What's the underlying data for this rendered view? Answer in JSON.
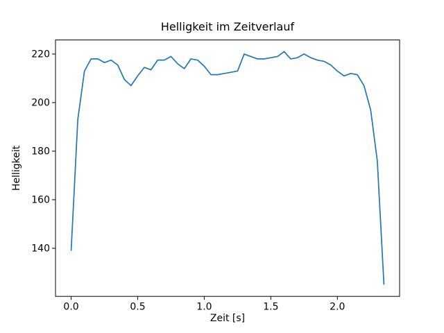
{
  "figure": {
    "background_color": "#ffffff",
    "frame_color": "#000000",
    "text_color": "#000000"
  },
  "chart_data": {
    "type": "line",
    "title": "Helligkeit im Zeitverlauf",
    "xlabel": "Zeit [s]",
    "ylabel": "Helligkeit",
    "line_color": "#1f77b4",
    "grid": false,
    "legend": null,
    "xlim": [
      -0.1175,
      2.4675
    ],
    "ylim": [
      120.2,
      225.8
    ],
    "xticks": {
      "values": [
        0.0,
        0.5,
        1.0,
        1.5,
        2.0
      ],
      "labels": [
        "0.0",
        "0.5",
        "1.0",
        "1.5",
        "2.0"
      ]
    },
    "yticks": {
      "values": [
        140,
        160,
        180,
        200,
        220
      ],
      "labels": [
        "140",
        "160",
        "180",
        "200",
        "220"
      ]
    },
    "x": [
      0.0,
      0.05,
      0.1,
      0.15,
      0.2,
      0.25,
      0.3,
      0.35,
      0.4,
      0.45,
      0.5,
      0.55,
      0.6,
      0.65,
      0.7,
      0.75,
      0.8,
      0.85,
      0.9,
      0.95,
      1.0,
      1.05,
      1.1,
      1.15,
      1.2,
      1.25,
      1.3,
      1.35,
      1.4,
      1.45,
      1.5,
      1.55,
      1.6,
      1.65,
      1.7,
      1.75,
      1.8,
      1.85,
      1.9,
      1.95,
      2.0,
      2.05,
      2.1,
      2.15,
      2.2,
      2.25,
      2.3,
      2.35
    ],
    "y": [
      139,
      193,
      213,
      218,
      218,
      216.5,
      217.5,
      215.5,
      209.5,
      207,
      211,
      214.5,
      213.5,
      217.5,
      217.5,
      219,
      216,
      214,
      218,
      217.5,
      215,
      211.5,
      211.5,
      212,
      212.5,
      213,
      220,
      219,
      218,
      218,
      218.5,
      219,
      221,
      218,
      218.5,
      220,
      218.5,
      217.5,
      217,
      215.5,
      213,
      211,
      212,
      211.5,
      207,
      197,
      176,
      125
    ]
  }
}
